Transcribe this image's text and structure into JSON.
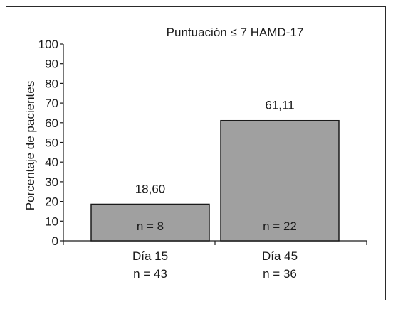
{
  "chart_data": {
    "type": "bar",
    "title": "Puntuación ≤ 7 HAMD-17",
    "ylabel": "Porcentaje de pacientes",
    "xlabel": "",
    "ylim": [
      0,
      100
    ],
    "yticks": [
      0,
      10,
      20,
      30,
      40,
      50,
      60,
      70,
      80,
      90,
      100
    ],
    "categories": [
      "Día 15",
      "Día 45"
    ],
    "category_n": [
      "n = 43",
      "n = 36"
    ],
    "values": [
      18.6,
      61.11
    ],
    "value_labels": [
      "18,60",
      "61,11"
    ],
    "bar_n": [
      "n = 8",
      "n = 22"
    ],
    "bar_color": "#a0a0a0",
    "grid": false,
    "legend": "none"
  }
}
